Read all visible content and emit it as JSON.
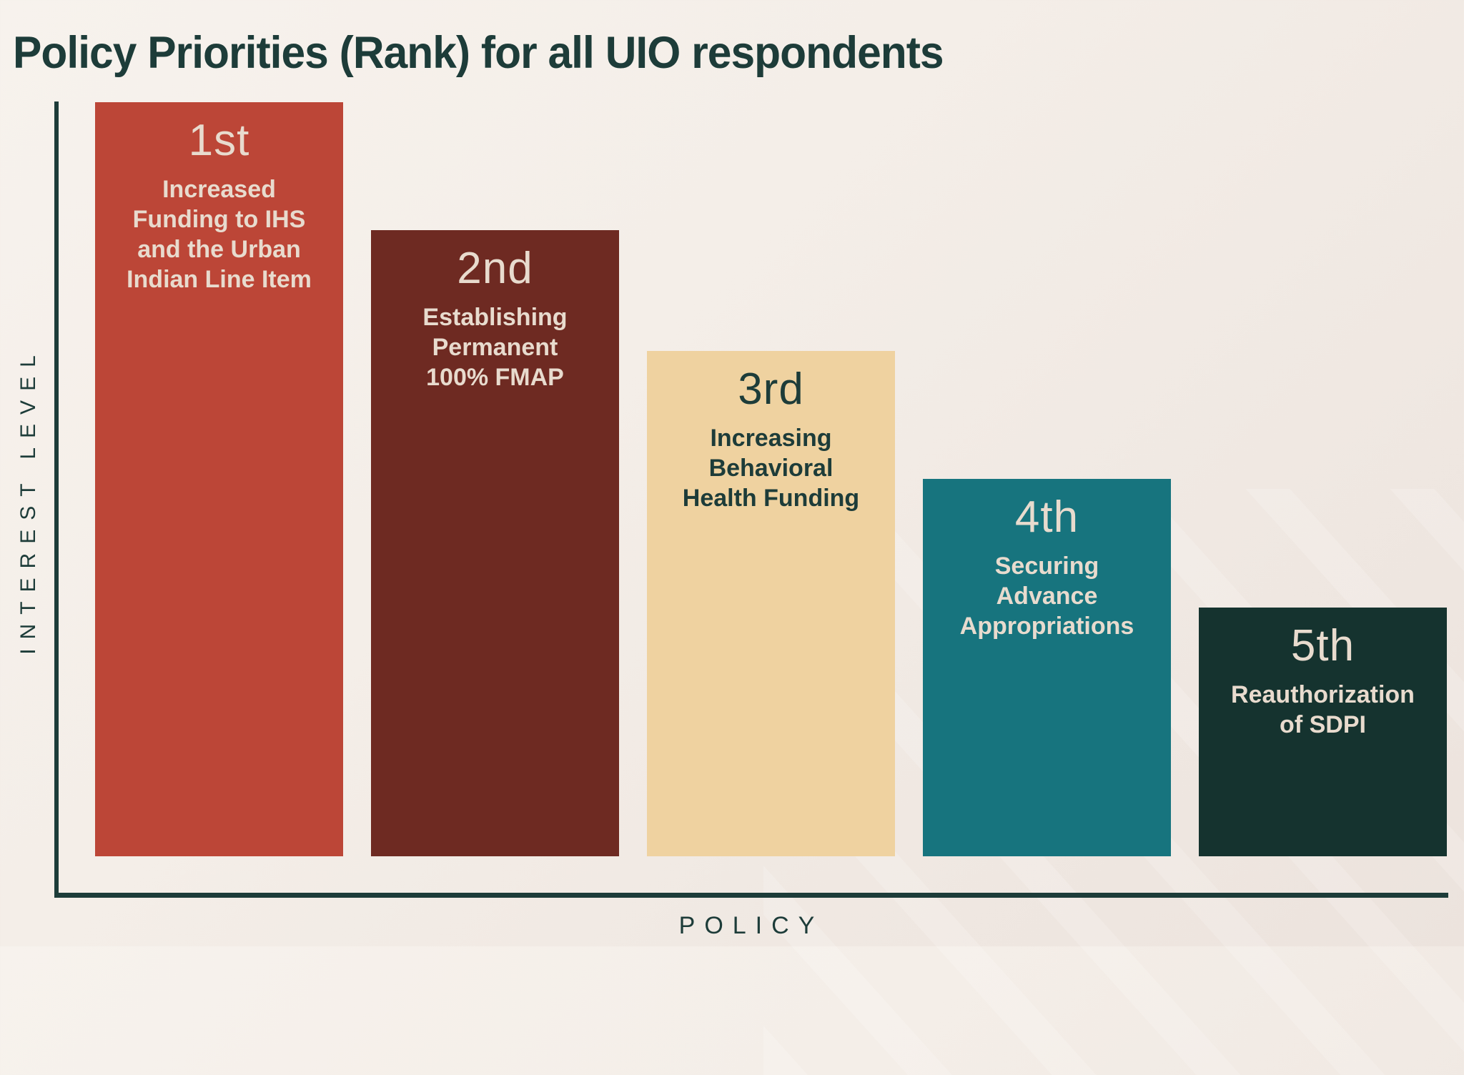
{
  "chart_data": {
    "type": "bar",
    "title": "Policy Priorities (Rank) for all UIO respondents",
    "xlabel": "POLICY",
    "ylabel": "INTEREST LEVEL",
    "categories": [
      "Increased Funding to IHS and the Urban Indian Line Item",
      "Establishing Permanent 100% FMAP",
      "Increasing Behavioral Health Funding",
      "Securing Advance Appropriations",
      "Reauthorization of SDPI"
    ],
    "ranks": [
      "1st",
      "2nd",
      "3rd",
      "4th",
      "5th"
    ],
    "values": [
      100,
      83,
      67,
      50,
      33
    ],
    "ylim": [
      0,
      106
    ],
    "grid": false,
    "legend": null,
    "note": "No numeric scale shown on axes; values are relative interest levels estimated from bar heights.",
    "bar_colors": [
      "#BC4637",
      "#6E2A22",
      "#EFD2A0",
      "#17747E",
      "#15332F"
    ]
  },
  "bars": [
    {
      "rank": "1st",
      "label": "Increased\nFunding to IHS\nand the Urban\nIndian Line Item",
      "color": "#BC4637",
      "text_color": "#E8DBCE"
    },
    {
      "rank": "2nd",
      "label": "Establishing\nPermanent\n100% FMAP",
      "color": "#6E2A22",
      "text_color": "#E8DBCE"
    },
    {
      "rank": "3rd",
      "label": "Increasing\nBehavioral\nHealth Funding",
      "color": "#EFD2A0",
      "text_color": "#1D3C39"
    },
    {
      "rank": "4th",
      "label": "Securing\nAdvance\nAppropriations",
      "color": "#17747E",
      "text_color": "#E8DBCE"
    },
    {
      "rank": "5th",
      "label": "Reauthorization\nof SDPI",
      "color": "#15332F",
      "text_color": "#E8DBCE"
    }
  ],
  "colors": {
    "background_top": "#F7F2ED",
    "background_bottom": "#ECE3DD",
    "axis": "#1D3C39",
    "title_text": "#1D3C39",
    "cream_text": "#E8DBCE"
  }
}
